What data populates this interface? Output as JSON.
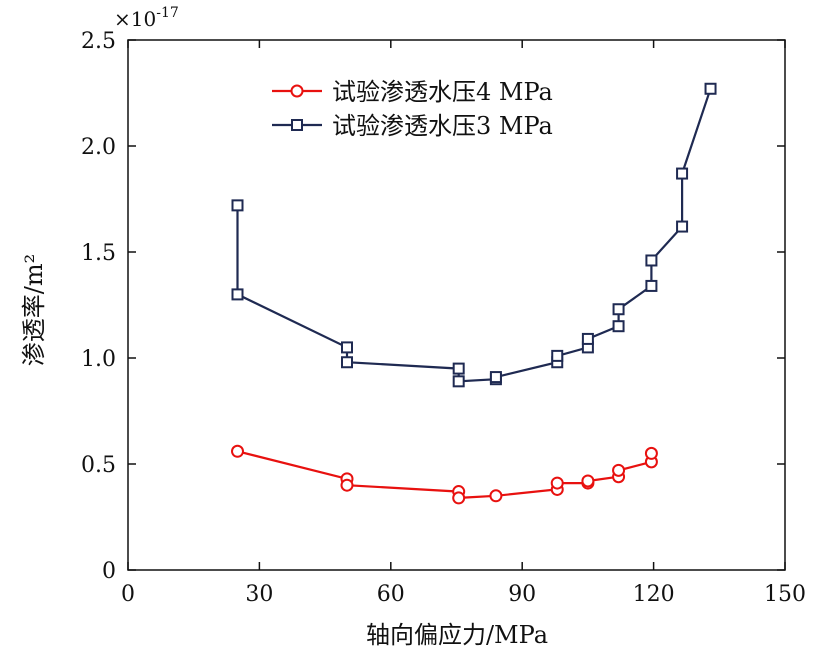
{
  "chart_data": {
    "type": "line",
    "xlabel": "轴向偏应力/MPa",
    "ylabel": "渗透率/m²",
    "y_multiplier": "×10",
    "y_multiplier_exp": "-17",
    "xlim": [
      0,
      150
    ],
    "ylim": [
      0,
      2.5
    ],
    "xticks": [
      0,
      30,
      60,
      90,
      120,
      150
    ],
    "yticks": [
      "0",
      "0.5",
      "1.0",
      "1.5",
      "2.0",
      "2.5"
    ],
    "ytick_values": [
      0,
      0.5,
      1.0,
      1.5,
      2.0,
      2.5
    ],
    "grid": false,
    "legend_position": "top-center",
    "series": [
      {
        "name": "试验渗透水压4 MPa",
        "color": "#e8110f",
        "marker": "circle",
        "x": [
          25,
          50,
          50,
          75.5,
          75.5,
          84,
          98,
          98,
          105,
          105,
          112,
          112,
          119.5,
          119.5
        ],
        "y": [
          0.56,
          0.43,
          0.4,
          0.37,
          0.34,
          0.35,
          0.38,
          0.41,
          0.41,
          0.42,
          0.44,
          0.47,
          0.51,
          0.55
        ]
      },
      {
        "name": "试验渗透水压3 MPa",
        "color": "#1f2a52",
        "marker": "square",
        "x": [
          25,
          25,
          50,
          50,
          75.5,
          75.5,
          84,
          84,
          98,
          98,
          105,
          105,
          112,
          112,
          119.5,
          119.5,
          126.5,
          126.5,
          133
        ],
        "y": [
          1.72,
          1.3,
          1.05,
          0.98,
          0.95,
          0.89,
          0.9,
          0.91,
          0.98,
          1.01,
          1.05,
          1.09,
          1.15,
          1.23,
          1.34,
          1.46,
          1.62,
          1.87,
          2.27
        ]
      }
    ]
  }
}
